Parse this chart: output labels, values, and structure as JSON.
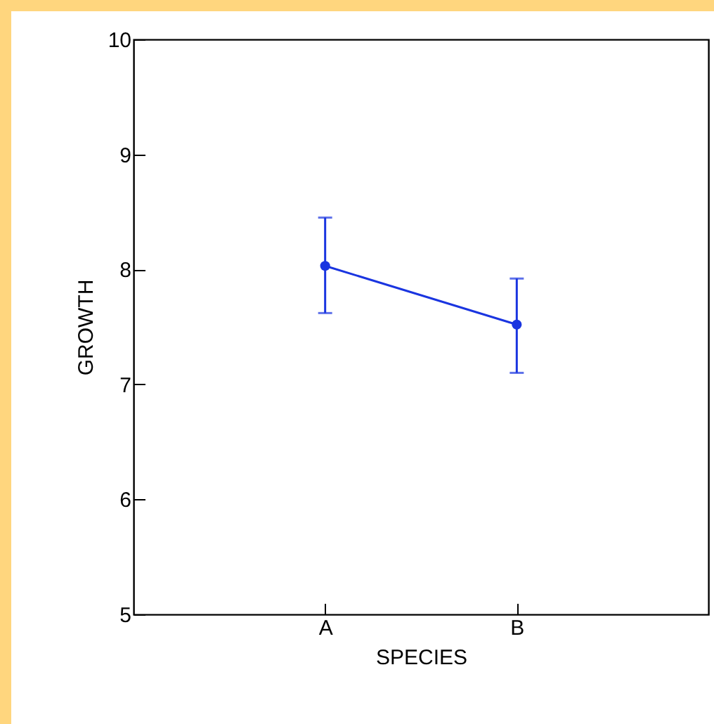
{
  "chart_data": {
    "type": "line",
    "xlabel": "SPECIES",
    "ylabel": "GROWTH",
    "categories": [
      "A",
      "B"
    ],
    "series": [
      {
        "color": "#1a35e0",
        "values": [
          8.03,
          7.52
        ],
        "errors": [
          [
            7.62,
            8.45
          ],
          [
            7.1,
            7.92
          ]
        ]
      }
    ],
    "ylim": [
      5,
      10
    ],
    "yticks": [
      5,
      6,
      7,
      8,
      9,
      10
    ],
    "grid": false,
    "marker": "circle",
    "line_style": "solid"
  }
}
